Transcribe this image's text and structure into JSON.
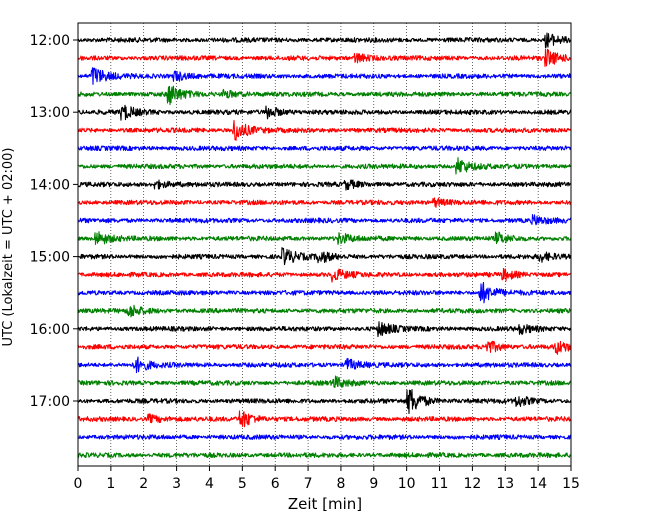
{
  "chart_data": {
    "type": "line",
    "title": "",
    "xlabel": "Zeit  [min]",
    "ylabel": "UTC (Lokalzeit = UTC + 02:00)",
    "xlim": [
      0,
      15
    ],
    "x_ticks": [
      "0",
      "1",
      "2",
      "3",
      "4",
      "5",
      "6",
      "7",
      "8",
      "9",
      "10",
      "11",
      "12",
      "13",
      "14",
      "15"
    ],
    "y_ticks": [
      "12:00",
      "13:00",
      "14:00",
      "15:00",
      "16:00",
      "17:00"
    ],
    "grid_x": true,
    "grid_style": "dotted",
    "trace_color_cycle": [
      "#000000",
      "#ff0000",
      "#0000ff",
      "#008000"
    ],
    "trace_start_hours": [
      "12:00",
      "12:15",
      "12:30",
      "12:45",
      "13:00",
      "13:15",
      "13:30",
      "13:45",
      "14:00",
      "14:15",
      "14:30",
      "14:45",
      "15:00",
      "15:15",
      "15:30",
      "15:45",
      "16:00",
      "16:15",
      "16:30",
      "16:45",
      "17:00",
      "17:15",
      "17:30",
      "17:45"
    ],
    "trace_minutes_per_line": 15,
    "events": [
      {
        "trace": 0,
        "t": 14.3,
        "amp": 0.7
      },
      {
        "trace": 1,
        "t": 14.3,
        "amp": 0.8
      },
      {
        "trace": 1,
        "t": 8.5,
        "amp": 0.5
      },
      {
        "trace": 2,
        "t": 0.5,
        "amp": 0.9
      },
      {
        "trace": 2,
        "t": 3.0,
        "amp": 0.5
      },
      {
        "trace": 3,
        "t": 2.8,
        "amp": 1.0
      },
      {
        "trace": 3,
        "t": 4.5,
        "amp": 0.4
      },
      {
        "trace": 4,
        "t": 1.4,
        "amp": 0.7
      },
      {
        "trace": 4,
        "t": 5.8,
        "amp": 0.6
      },
      {
        "trace": 5,
        "t": 4.8,
        "amp": 1.1
      },
      {
        "trace": 7,
        "t": 11.6,
        "amp": 0.8
      },
      {
        "trace": 8,
        "t": 2.4,
        "amp": 0.4
      },
      {
        "trace": 8,
        "t": 8.2,
        "amp": 0.4
      },
      {
        "trace": 9,
        "t": 10.9,
        "amp": 0.4
      },
      {
        "trace": 10,
        "t": 13.9,
        "amp": 0.4
      },
      {
        "trace": 11,
        "t": 0.6,
        "amp": 0.7
      },
      {
        "trace": 11,
        "t": 8.0,
        "amp": 0.5
      },
      {
        "trace": 11,
        "t": 12.8,
        "amp": 0.5
      },
      {
        "trace": 12,
        "t": 6.3,
        "amp": 0.8
      },
      {
        "trace": 12,
        "t": 7.4,
        "amp": 0.5
      },
      {
        "trace": 12,
        "t": 14.1,
        "amp": 0.4
      },
      {
        "trace": 13,
        "t": 7.8,
        "amp": 0.6
      },
      {
        "trace": 13,
        "t": 13.0,
        "amp": 0.5
      },
      {
        "trace": 14,
        "t": 12.3,
        "amp": 1.1
      },
      {
        "trace": 15,
        "t": 1.6,
        "amp": 0.6
      },
      {
        "trace": 16,
        "t": 9.2,
        "amp": 0.7
      },
      {
        "trace": 16,
        "t": 13.5,
        "amp": 0.4
      },
      {
        "trace": 17,
        "t": 12.5,
        "amp": 0.6
      },
      {
        "trace": 17,
        "t": 14.6,
        "amp": 0.6
      },
      {
        "trace": 18,
        "t": 1.8,
        "amp": 0.7
      },
      {
        "trace": 18,
        "t": 8.2,
        "amp": 0.6
      },
      {
        "trace": 19,
        "t": 7.8,
        "amp": 0.6
      },
      {
        "trace": 20,
        "t": 10.1,
        "amp": 1.4
      },
      {
        "trace": 20,
        "t": 13.4,
        "amp": 0.5
      },
      {
        "trace": 21,
        "t": 5.0,
        "amp": 0.9
      },
      {
        "trace": 21,
        "t": 2.2,
        "amp": 0.4
      }
    ]
  }
}
